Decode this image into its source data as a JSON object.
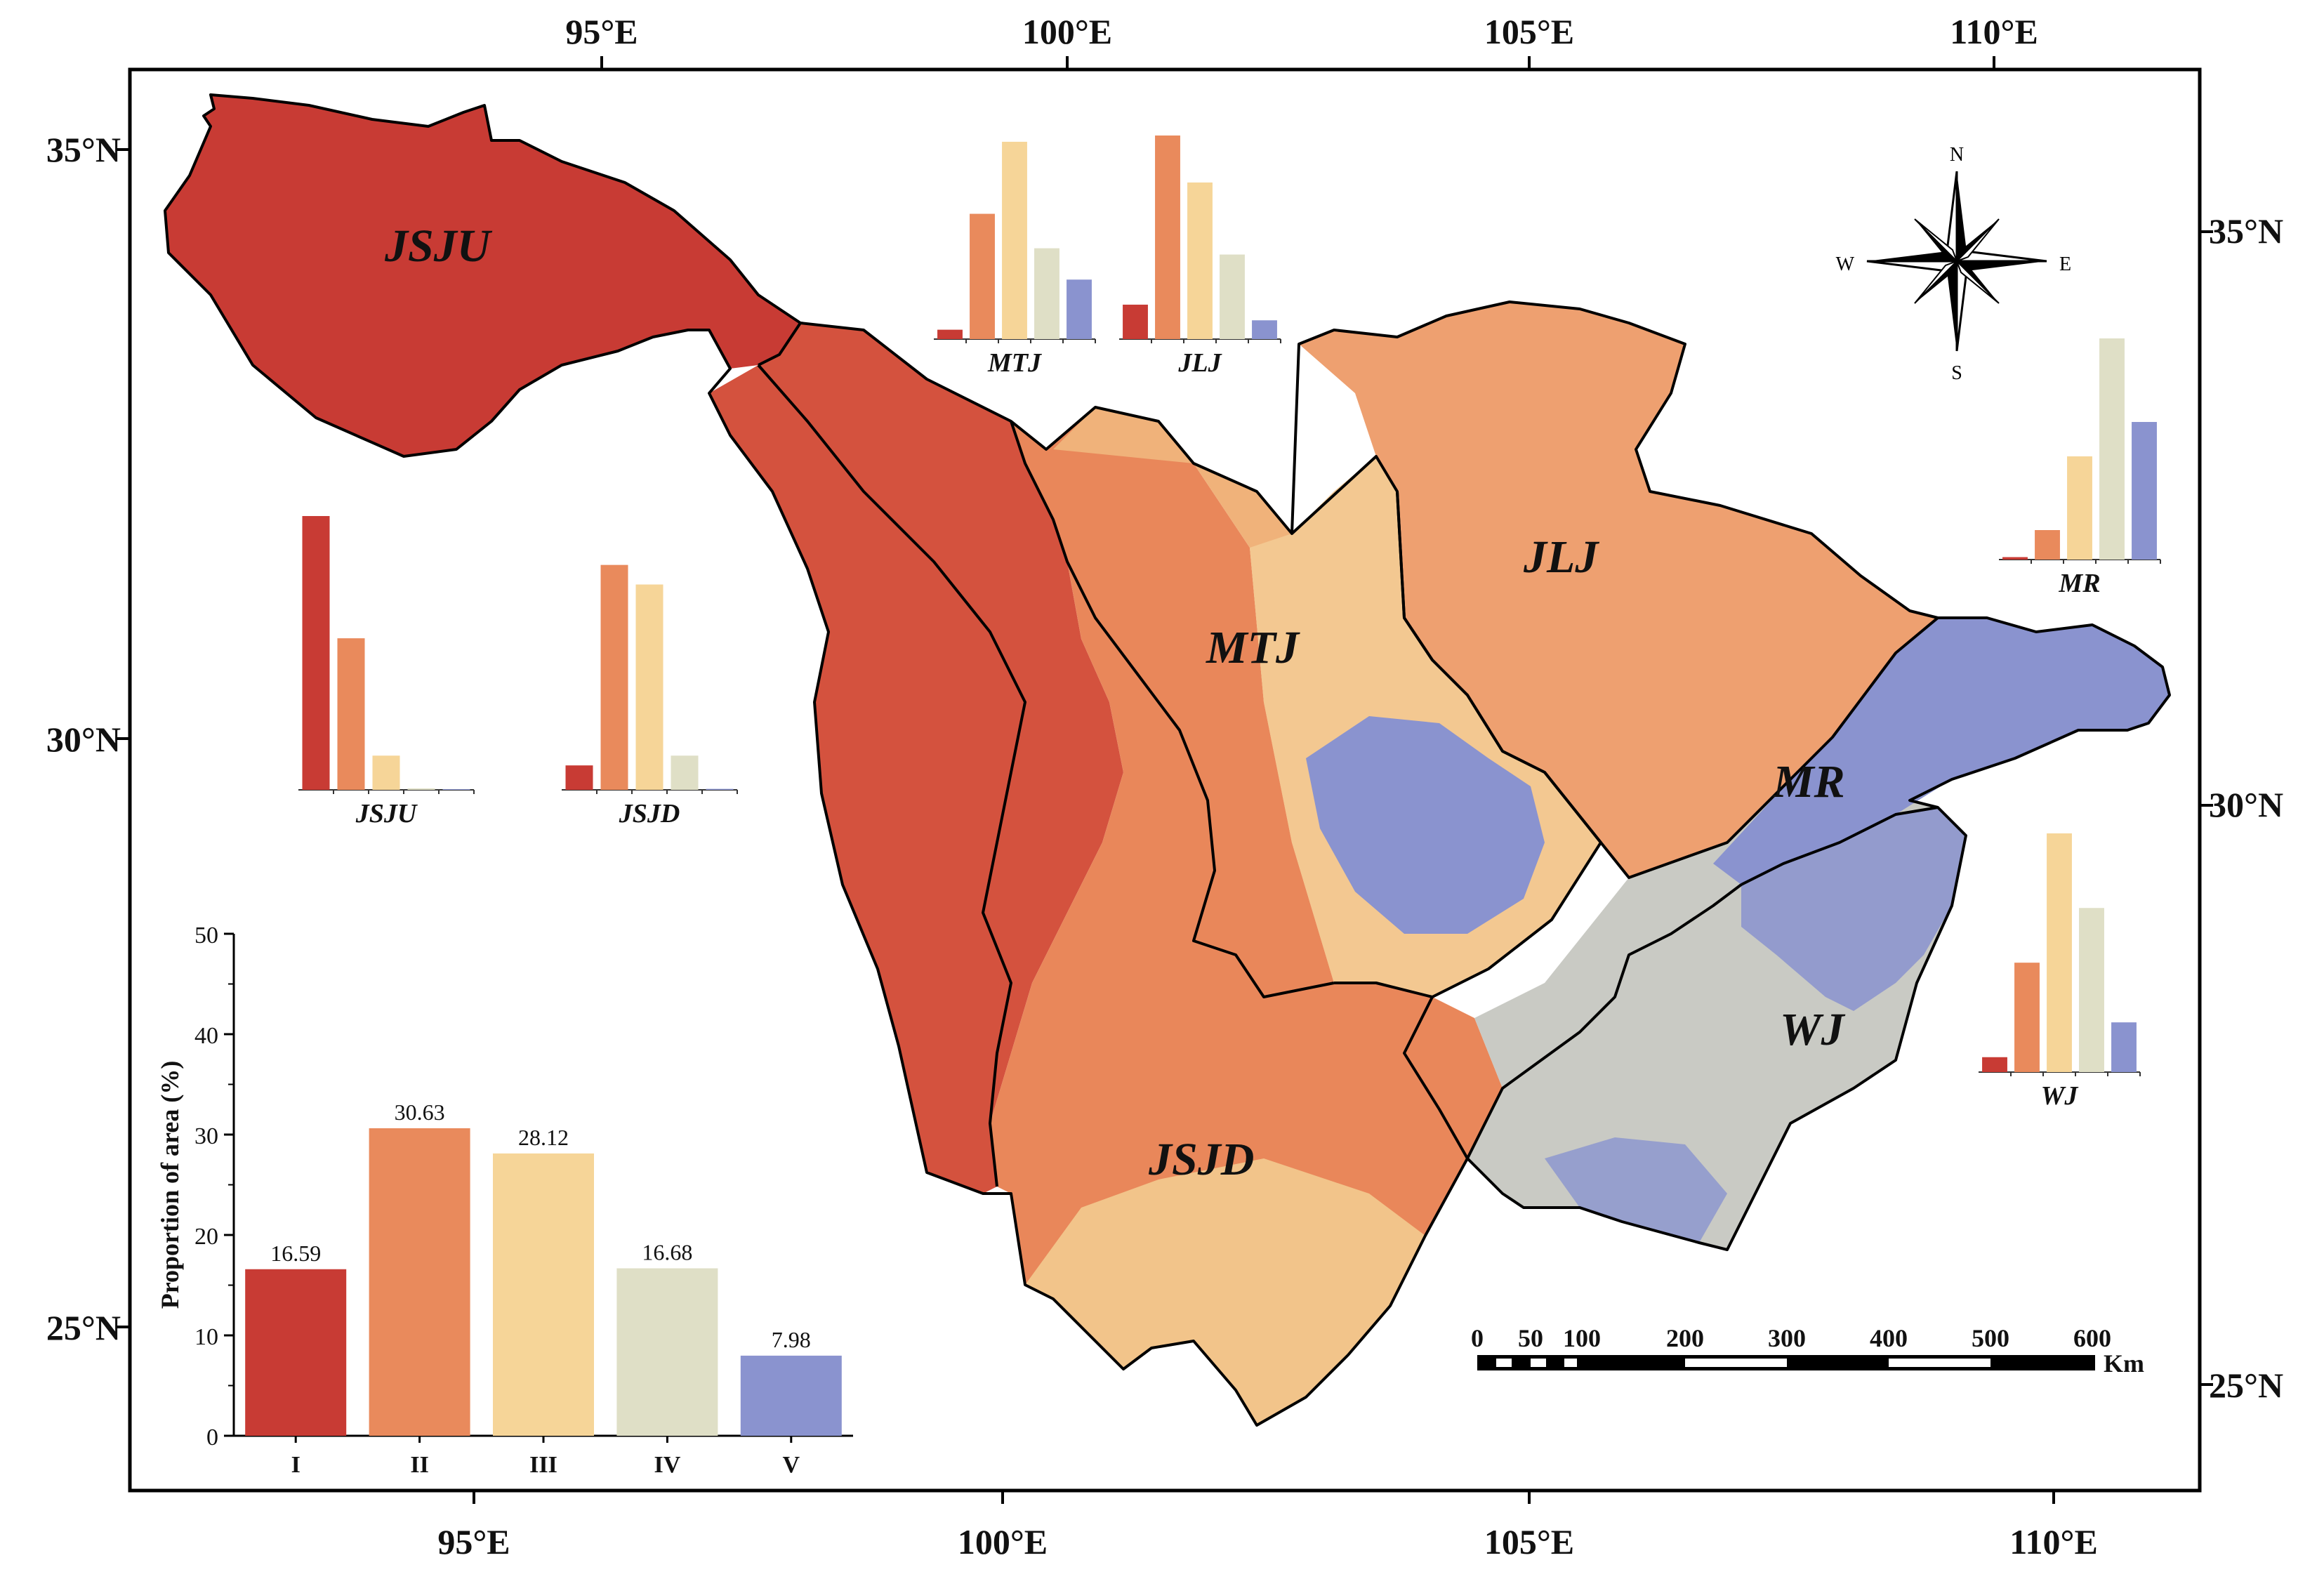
{
  "map": {
    "top_lon_labels": [
      "95°E",
      "100°E",
      "105°E",
      "110°E"
    ],
    "bottom_lon_labels": [
      "95°E",
      "100°E",
      "105°E",
      "110°E"
    ],
    "left_lat_labels": [
      "35°N",
      "30°N",
      "25°N"
    ],
    "right_lat_labels": [
      "35°N",
      "30°N",
      "25°N"
    ],
    "regions": [
      "JSJU",
      "MTJ",
      "JLJ",
      "MR",
      "WJ",
      "JSJD"
    ],
    "compass": {
      "n": "N",
      "s": "S",
      "e": "E",
      "w": "W"
    },
    "scale_bar": {
      "ticks": [
        "0",
        "50",
        "100",
        "200",
        "300",
        "400",
        "500",
        "600"
      ],
      "unit": "Km"
    },
    "colors": {
      "I": "#c83b34",
      "II": "#e98a5c",
      "III": "#f6d598",
      "IV": "#dfdfc6",
      "V": "#8a93cf"
    }
  },
  "chart_data": [
    {
      "type": "bar",
      "title": "",
      "categories": [
        "I",
        "II",
        "III",
        "IV",
        "V"
      ],
      "values": [
        16.59,
        30.63,
        28.12,
        16.68,
        7.98
      ],
      "value_labels": [
        "16.59",
        "30.63",
        "28.12",
        "16.68",
        "7.98"
      ],
      "ylabel": "Proportion of area (%)",
      "xlabel": "",
      "ylim": [
        0,
        50
      ],
      "yticks": [
        "0",
        "10",
        "20",
        "30",
        "40",
        "50"
      ]
    },
    {
      "type": "bar",
      "title": "MTJ",
      "categories": [
        "I",
        "II",
        "III",
        "IV",
        "V"
      ],
      "values": [
        3,
        40,
        63,
        29,
        19
      ],
      "ylim": [
        0,
        65
      ]
    },
    {
      "type": "bar",
      "title": "JLJ",
      "categories": [
        "I",
        "II",
        "III",
        "IV",
        "V"
      ],
      "values": [
        11,
        65,
        50,
        27,
        6
      ],
      "ylim": [
        0,
        65
      ]
    },
    {
      "type": "bar",
      "title": "JSJU",
      "categories": [
        "I",
        "II",
        "III",
        "IV",
        "V"
      ],
      "values": [
        56,
        31,
        7,
        0.3,
        0.1
      ],
      "ylim": [
        0,
        56
      ]
    },
    {
      "type": "bar",
      "title": "JSJD",
      "categories": [
        "I",
        "II",
        "III",
        "IV",
        "V"
      ],
      "values": [
        5,
        46,
        42,
        7,
        0.2
      ],
      "ylim": [
        0,
        56
      ]
    },
    {
      "type": "bar",
      "title": "MR",
      "categories": [
        "I",
        "II",
        "III",
        "IV",
        "V"
      ],
      "values": [
        0.5,
        6,
        21,
        45,
        28
      ],
      "ylim": [
        0,
        45
      ]
    },
    {
      "type": "bar",
      "title": "WJ",
      "categories": [
        "I",
        "II",
        "III",
        "IV",
        "V"
      ],
      "values": [
        3,
        22,
        48,
        33,
        10
      ],
      "ylim": [
        0,
        48
      ]
    }
  ]
}
